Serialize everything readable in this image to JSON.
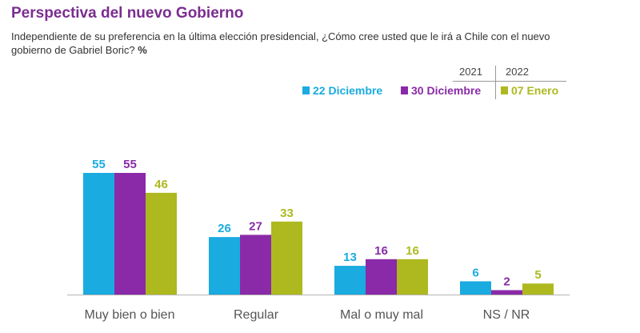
{
  "header": {
    "title": "Perspectiva del nuevo Gobierno",
    "subtitle": "Independiente de su preferencia en la última elección presidencial, ¿Cómo cree usted que le irá a Chile con el nuevo gobierno de Gabriel Boric?",
    "subtitle_unit": "%"
  },
  "legend": {
    "year_2021": "2021",
    "year_2022": "2022"
  },
  "colors": {
    "title": "#7b2d90",
    "series_1": "#1aabe0",
    "series_2": "#8a2aa8",
    "series_3": "#adb91e",
    "axis": "#b5b5b5",
    "category_text": "#555555"
  },
  "chart_data": {
    "type": "bar",
    "categories": [
      "Muy bien o bien",
      "Regular",
      "Mal o muy mal",
      "NS / NR"
    ],
    "series": [
      {
        "name": "22 Diciembre",
        "values": [
          55,
          26,
          13,
          6
        ],
        "color": "#1aabe0"
      },
      {
        "name": "30 Diciembre",
        "values": [
          55,
          27,
          16,
          2
        ],
        "color": "#8a2aa8"
      },
      {
        "name": "07 Enero",
        "values": [
          46,
          33,
          16,
          5
        ],
        "color": "#adb91e"
      }
    ],
    "ylim": [
      0,
      55
    ],
    "grid": false,
    "legend_position": "top-right"
  }
}
